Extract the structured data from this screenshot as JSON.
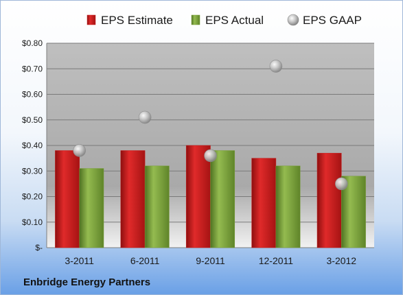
{
  "chart_data": {
    "type": "bar",
    "categories": [
      "3-2011",
      "6-2011",
      "9-2011",
      "12-2011",
      "3-2012"
    ],
    "series": [
      {
        "name": "EPS Estimate",
        "kind": "bar",
        "color": "#c81e1e",
        "values": [
          0.38,
          0.38,
          0.4,
          0.35,
          0.37
        ]
      },
      {
        "name": "EPS Actual",
        "kind": "bar",
        "color": "#7aa03a",
        "values": [
          0.31,
          0.32,
          0.38,
          0.32,
          0.28
        ]
      },
      {
        "name": "EPS GAAP",
        "kind": "marker",
        "color": "#a8a8a8",
        "values": [
          0.38,
          0.51,
          0.36,
          0.71,
          0.25
        ]
      }
    ],
    "yticks": [
      "$-",
      "$0.10",
      "$0.20",
      "$0.30",
      "$0.40",
      "$0.50",
      "$0.60",
      "$0.70",
      "$0.80"
    ],
    "ylim": [
      0,
      0.8
    ],
    "grid": true,
    "legend_position": "top"
  },
  "footer": "Enbridge Energy Partners"
}
